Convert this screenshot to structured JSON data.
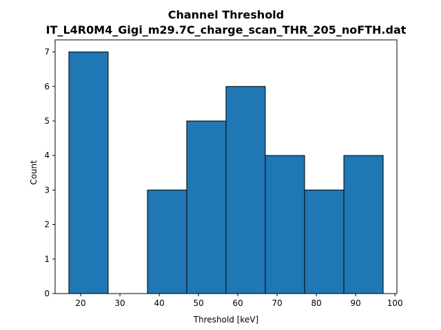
{
  "chart_data": {
    "type": "bar",
    "title": "Channel Threshold",
    "subtitle": "IT_L4R0M4_Gigi_m29.7C_charge_scan_THR_205_noFTH.dat",
    "xlabel": "Threshold [keV]",
    "ylabel": "Count",
    "xlim": [
      13.5,
      100.5
    ],
    "ylim": [
      0,
      7.35
    ],
    "xticks": [
      20,
      30,
      40,
      50,
      60,
      70,
      80,
      90,
      100
    ],
    "yticks": [
      0,
      1,
      2,
      3,
      4,
      5,
      6,
      7
    ],
    "grid": false,
    "bins": [
      {
        "x0": 17,
        "x1": 27,
        "count": 7
      },
      {
        "x0": 27,
        "x1": 37,
        "count": 0
      },
      {
        "x0": 37,
        "x1": 47,
        "count": 3
      },
      {
        "x0": 47,
        "x1": 57,
        "count": 5
      },
      {
        "x0": 57,
        "x1": 67,
        "count": 6
      },
      {
        "x0": 67,
        "x1": 77,
        "count": 4
      },
      {
        "x0": 77,
        "x1": 87,
        "count": 3
      },
      {
        "x0": 87,
        "x1": 97,
        "count": 4
      }
    ],
    "colors": {
      "bar_fill": "#1f77b4",
      "bar_edge": "#000000"
    }
  }
}
